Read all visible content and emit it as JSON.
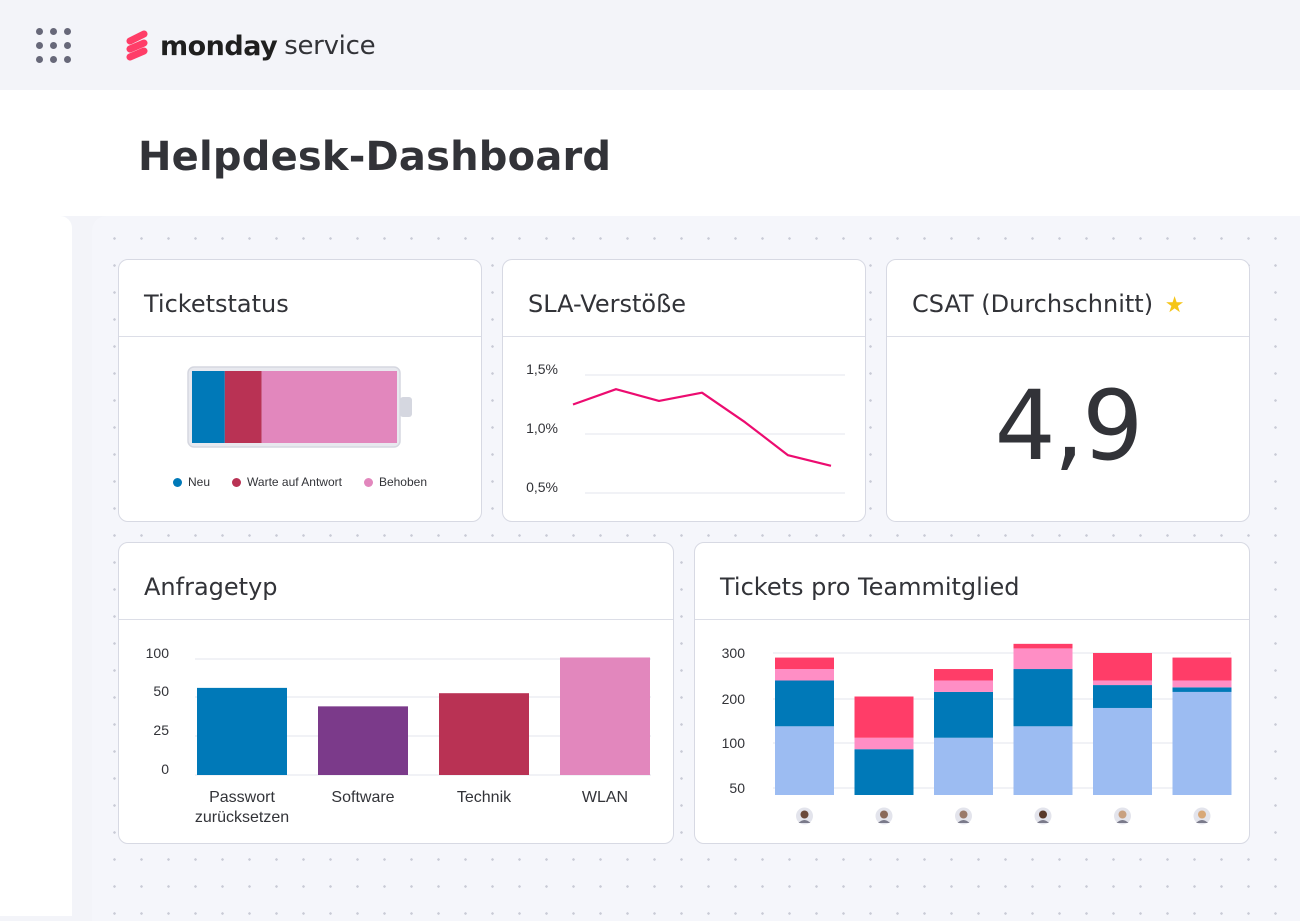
{
  "app": {
    "brand_bold": "monday",
    "brand_light": "service"
  },
  "page": {
    "title": "Helpdesk-Dashboard"
  },
  "colors": {
    "blue": "#0079b8",
    "wine": "#b93254",
    "pink": "#e287bd",
    "purple": "#7b3a8a",
    "red": "#ff3d68",
    "light_pink": "#ff8ec5",
    "light_blue": "#9cbcf2",
    "line": "#ec0c70",
    "brand": "#ff3d68"
  },
  "widgets": {
    "ticket_status": {
      "title": "Ticketstatus",
      "legend": [
        {
          "label": "Neu",
          "color": "#0079b8"
        },
        {
          "label": "Warte auf Antwort",
          "color": "#b93254"
        },
        {
          "label": "Behoben",
          "color": "#e287bd"
        }
      ]
    },
    "sla": {
      "title": "SLA-Verstöße"
    },
    "csat": {
      "title": "CSAT (Durchschnitt)",
      "icon": "star-icon",
      "value": "4,9"
    },
    "request_type": {
      "title": "Anfragetyp"
    },
    "tickets_per_member": {
      "title": "Tickets pro Teammitglied",
      "avatars": [
        "avatar-1",
        "avatar-2",
        "avatar-3",
        "avatar-4",
        "avatar-5",
        "avatar-6"
      ]
    }
  },
  "chart_data": [
    {
      "id": "ticket_status",
      "type": "bar",
      "orientation": "horizontal-stacked",
      "categories": [
        "Neu",
        "Warte auf Antwort",
        "Behoben"
      ],
      "values": [
        16,
        18,
        66
      ],
      "unit": "percent"
    },
    {
      "id": "sla",
      "type": "line",
      "yticks": [
        "1,5%",
        "1,0%",
        "0,5%"
      ],
      "ylim": [
        0.5,
        1.5
      ],
      "values": [
        1.25,
        1.38,
        1.28,
        1.35,
        1.1,
        0.82,
        0.73
      ],
      "grid": true
    },
    {
      "id": "request_type",
      "type": "bar",
      "categories": [
        "Passwort zurücksetzen",
        "Software",
        "Technik",
        "WLAN"
      ],
      "values": [
        62,
        44,
        55,
        102
      ],
      "yticks": [
        "100",
        "50",
        "25",
        "0"
      ],
      "colors": [
        "#0079b8",
        "#7b3a8a",
        "#b93254",
        "#e287bd"
      ],
      "grid": true
    },
    {
      "id": "tickets_per_member",
      "type": "bar",
      "orientation": "vertical-stacked",
      "yticks": [
        "300",
        "200",
        "100",
        "50"
      ],
      "categories": [
        "avatar-1",
        "avatar-2",
        "avatar-3",
        "avatar-4",
        "avatar-5",
        "avatar-6"
      ],
      "series": [
        {
          "color": "#9cbcf2",
          "values": [
            150,
            0,
            125,
            150,
            190,
            225
          ]
        },
        {
          "color": "#0079b8",
          "values": [
            100,
            100,
            100,
            125,
            50,
            10
          ]
        },
        {
          "color": "#ff8ec5",
          "values": [
            25,
            25,
            25,
            45,
            10,
            15
          ]
        },
        {
          "color": "#ff3d68",
          "values": [
            25,
            90,
            25,
            10,
            60,
            50
          ]
        }
      ],
      "grid": true
    }
  ]
}
